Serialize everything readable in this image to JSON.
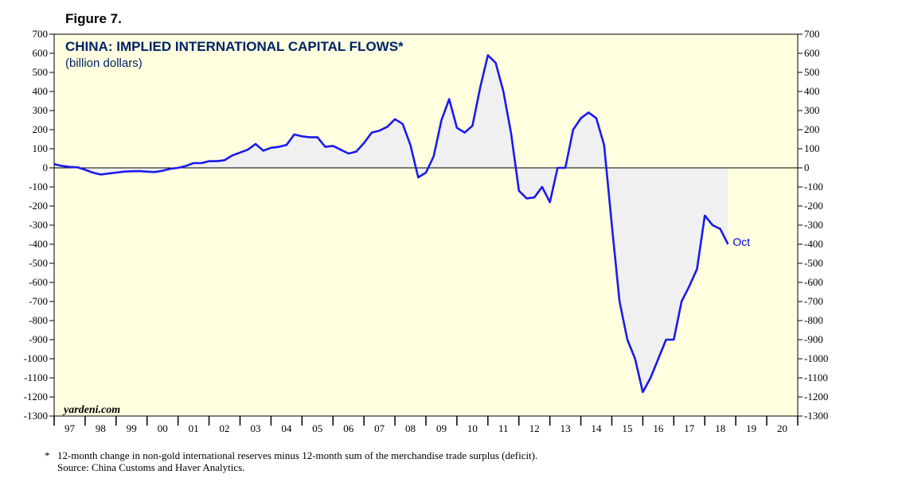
{
  "figure_label": "Figure 7.",
  "chart_data": {
    "type": "area",
    "title": "CHINA: IMPLIED INTERNATIONAL CAPITAL FLOWS*",
    "subtitle": "(billion dollars)",
    "ylim": [
      -1300,
      700
    ],
    "yticks": [
      700,
      600,
      500,
      400,
      300,
      200,
      100,
      0,
      -100,
      -200,
      -300,
      -400,
      -500,
      -600,
      -700,
      -800,
      -900,
      -1000,
      -1100,
      -1200,
      -1300
    ],
    "xlim": [
      1997.0,
      2021.0
    ],
    "xtick_labels": [
      "97",
      "98",
      "99",
      "00",
      "01",
      "02",
      "03",
      "04",
      "05",
      "06",
      "07",
      "08",
      "09",
      "10",
      "11",
      "12",
      "13",
      "14",
      "15",
      "16",
      "17",
      "18",
      "19",
      "20"
    ],
    "grid": false,
    "zero_line": true,
    "line_color": "#1a1aee",
    "fill_color": "#f0f0f0",
    "plot_background": "#ffffe0",
    "end_label": "Oct",
    "watermark": "yardeni.com",
    "series": [
      {
        "name": "",
        "x": [
          1997.0,
          1997.25,
          1997.5,
          1997.75,
          1998.0,
          1998.25,
          1998.5,
          1998.75,
          1999.0,
          1999.25,
          1999.5,
          1999.75,
          2000.0,
          2000.25,
          2000.5,
          2000.75,
          2001.0,
          2001.25,
          2001.5,
          2001.75,
          2002.0,
          2002.25,
          2002.5,
          2002.75,
          2003.0,
          2003.25,
          2003.5,
          2003.75,
          2004.0,
          2004.25,
          2004.5,
          2004.75,
          2005.0,
          2005.25,
          2005.5,
          2005.75,
          2006.0,
          2006.25,
          2006.5,
          2006.75,
          2007.0,
          2007.25,
          2007.5,
          2007.75,
          2008.0,
          2008.25,
          2008.5,
          2008.75,
          2009.0,
          2009.25,
          2009.5,
          2009.75,
          2010.0,
          2010.25,
          2010.5,
          2010.75,
          2011.0,
          2011.25,
          2011.5,
          2011.75,
          2012.0,
          2012.25,
          2012.5,
          2012.75,
          2013.0,
          2013.25,
          2013.5,
          2013.75,
          2014.0,
          2014.25,
          2014.5,
          2014.75,
          2015.0,
          2015.25,
          2015.5,
          2015.75,
          2016.0,
          2016.25,
          2016.5,
          2016.75,
          2017.0,
          2017.25,
          2017.5,
          2017.75,
          2018.0,
          2018.25,
          2018.5,
          2018.75
        ],
        "values": [
          20,
          10,
          5,
          3,
          -10,
          -25,
          -35,
          -30,
          -25,
          -20,
          -18,
          -17,
          -20,
          -22,
          -15,
          -5,
          0,
          10,
          25,
          25,
          35,
          35,
          40,
          65,
          80,
          95,
          125,
          90,
          105,
          110,
          120,
          175,
          165,
          160,
          160,
          110,
          115,
          95,
          75,
          85,
          130,
          185,
          195,
          215,
          255,
          230,
          120,
          -50,
          -25,
          60,
          250,
          360,
          210,
          185,
          220,
          420,
          590,
          550,
          400,
          180,
          -120,
          -160,
          -155,
          -100,
          -180,
          0,
          0,
          200,
          260,
          290,
          260,
          120,
          -300,
          -700,
          -900,
          -1000,
          -1175,
          -1100,
          -1000,
          -900,
          -900,
          -700,
          -620,
          -530,
          -250,
          -300,
          -320,
          -400
        ]
      }
    ]
  },
  "footnote": {
    "marker": "*",
    "text": "12-month change in non-gold international reserves minus 12-month sum of the merchandise trade surplus (deficit).",
    "source": "Source: China Customs and Haver Analytics."
  }
}
